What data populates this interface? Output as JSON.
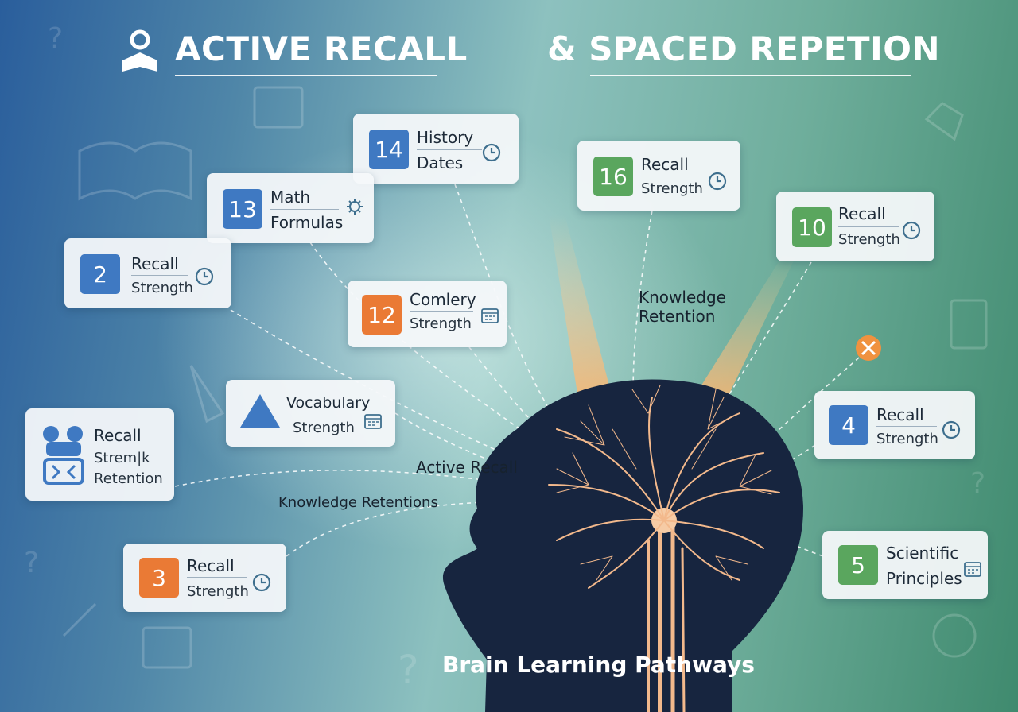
{
  "title": {
    "left": "ACTIVE RECALL",
    "right": "& SPACED REPETION"
  },
  "caption": "Brain Learning Pathways",
  "connector_labels": {
    "knowledge_retention_top_1": "Knowledge",
    "knowledge_retention_top_2": "Retention",
    "active_recall": "Active Recall",
    "knowledge_retentions": "Knowledge Retentions"
  },
  "cards": {
    "history": {
      "number": "14",
      "line1": "History",
      "line2": "Dates",
      "icon": "clock-icon"
    },
    "math": {
      "number": "13",
      "line1": "Math",
      "line2": "Formulas",
      "icon": "gear-icon"
    },
    "recall2": {
      "number": "2",
      "line1": "Recall",
      "line2": "Strength",
      "icon": "clock-icon"
    },
    "comlery": {
      "number": "12",
      "line1": "Comlery",
      "line2": "Strength",
      "icon": "calendar-icon"
    },
    "vocabulary": {
      "line1": "Vocabulary",
      "line2": "Strength",
      "icon": "calendar-icon"
    },
    "recall_left": {
      "line1": "Recall",
      "line2": "Strem|k",
      "line3": "Retention",
      "icon": "people-icon"
    },
    "recall3": {
      "number": "3",
      "line1": "Recall",
      "line2": "Strength",
      "icon": "clock-icon"
    },
    "recall16": {
      "number": "16",
      "line1": "Recall",
      "line2": "Strength",
      "icon": "clock-icon"
    },
    "recall10": {
      "number": "10",
      "line1": "Recall",
      "line2": "Strength",
      "icon": "clock-icon"
    },
    "recall4": {
      "number": "4",
      "line1": "Recall",
      "line2": "Strength",
      "icon": "clock-icon"
    },
    "scientific": {
      "number": "5",
      "line1": "Scientific",
      "line2": "Principles",
      "icon": "calendar-icon"
    }
  },
  "colors": {
    "blue": "#3f79c2",
    "green": "#5aa65e",
    "orange": "#ea7a35",
    "head": "#17253f",
    "neuron": "#f3b98c"
  }
}
